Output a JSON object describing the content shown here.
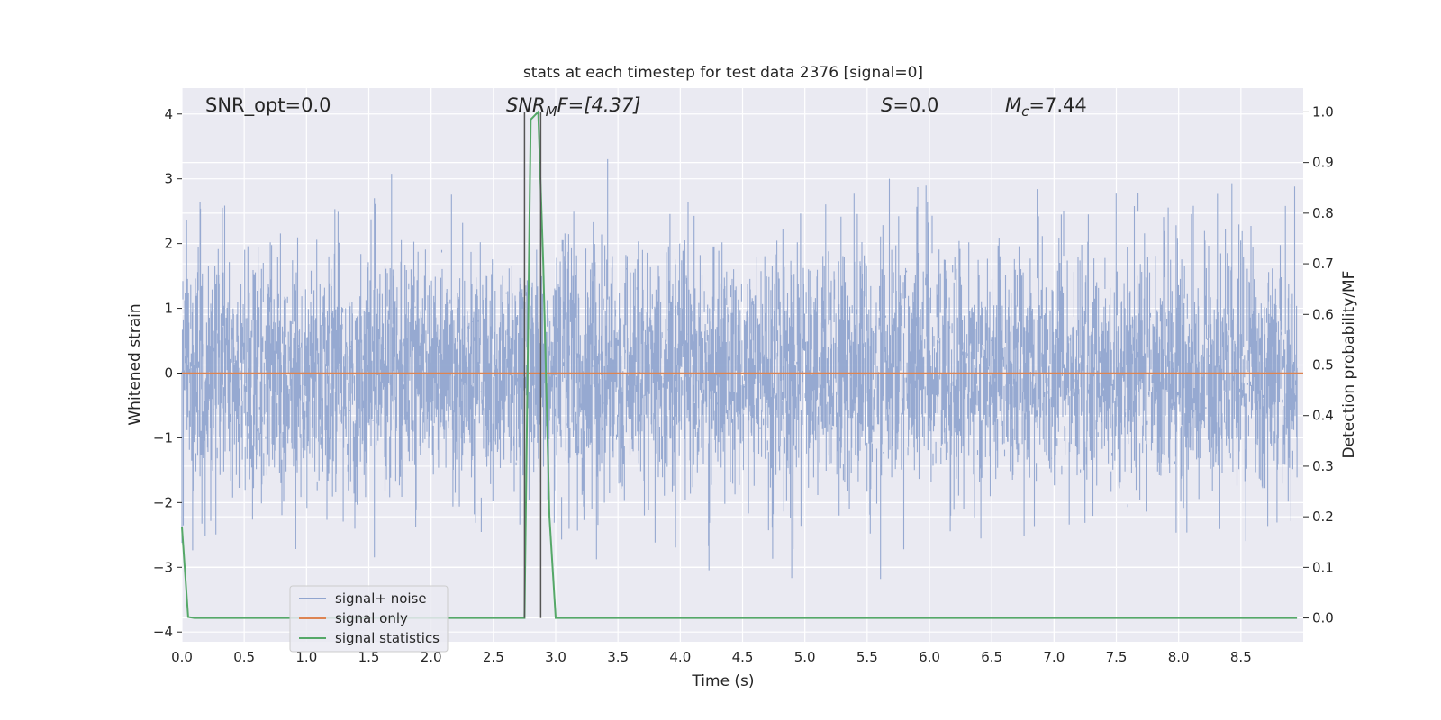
{
  "chart_data": {
    "type": "line",
    "title": "stats at each timestep for test data 2376 [signal=0]",
    "xlabel": "Time (s)",
    "ylabel": "Whitened strain",
    "y2label": "Detection probability/MF",
    "xlim": [
      0.0,
      9.0
    ],
    "ylim": [
      -4.15,
      4.4
    ],
    "y2lim": [
      -0.047,
      1.047
    ],
    "xticks": [
      "0.0",
      "0.5",
      "1.0",
      "1.5",
      "2.0",
      "2.5",
      "3.0",
      "3.5",
      "4.0",
      "4.5",
      "5.0",
      "5.5",
      "6.0",
      "6.5",
      "7.0",
      "7.5",
      "8.0",
      "8.5"
    ],
    "yticks": [
      "4",
      "3",
      "2",
      "1",
      "0",
      "−1",
      "−2",
      "−3",
      "−4"
    ],
    "y2ticks": [
      "1.0",
      "0.9",
      "0.8",
      "0.7",
      "0.6",
      "0.5",
      "0.4",
      "0.3",
      "0.2",
      "0.1",
      "0.0"
    ],
    "grid": true,
    "legend_position": "lower-left",
    "annotations": {
      "snr_opt": "SNR_opt=0.0",
      "snr_mf_base": "SNR",
      "snr_mf_sub": "M",
      "snr_mf_rest": "F=[4.37]",
      "s_base": "S",
      "s_rest": "=0.0",
      "mc_base": "M",
      "mc_sub": "c",
      "mc_rest": "=7.44"
    },
    "vlines": [
      2.75,
      2.88
    ],
    "series": [
      {
        "name": "signal+ noise",
        "color": "#91a5cf",
        "description_values": "whitened noise, approx. within [-3.2, 4.0]",
        "noise_seed": 2376,
        "noise_sigma": 0.95
      },
      {
        "name": "signal only",
        "color": "#dd8452",
        "values": 0.0
      },
      {
        "name": "signal statistics",
        "color": "#55a868",
        "points": [
          [
            0.0,
            0.18
          ],
          [
            0.05,
            0.002
          ],
          [
            0.1,
            0.0
          ],
          [
            2.72,
            0.0
          ],
          [
            2.75,
            0.0
          ],
          [
            2.8,
            0.985
          ],
          [
            2.86,
            1.0
          ],
          [
            2.9,
            0.7
          ],
          [
            2.95,
            0.2
          ],
          [
            3.0,
            0.0
          ],
          [
            8.95,
            0.0
          ]
        ]
      }
    ],
    "colors": {
      "plot_bg": "#eaeaf2",
      "grid": "#ffffff",
      "vline": "#555555",
      "text": "#262626"
    }
  }
}
